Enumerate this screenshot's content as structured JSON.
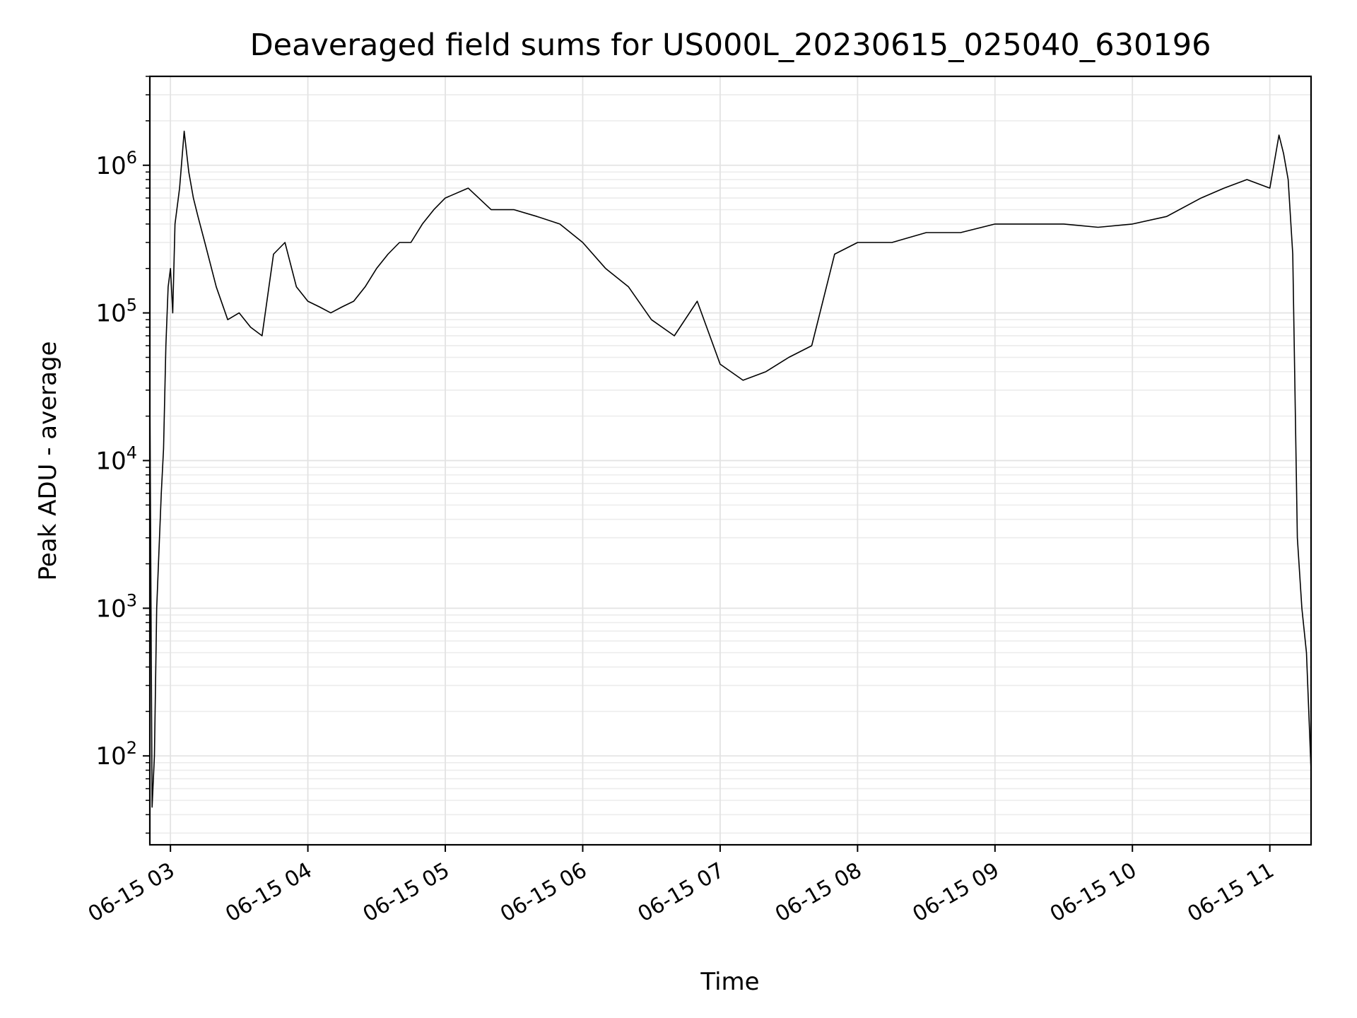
{
  "chart_data": {
    "type": "line",
    "title": "Deaveraged field sums for US000L_20230615_025040_630196",
    "xlabel": "Time",
    "ylabel": "Peak ADU - average",
    "yscale": "log",
    "grid": "major and minor",
    "xlim": [
      "2023-06-15 02:51",
      "2023-06-15 11:18"
    ],
    "ylim": [
      25,
      4000000
    ],
    "x_tick_labels": [
      "06-15 03",
      "06-15 04",
      "06-15 05",
      "06-15 06",
      "06-15 07",
      "06-15 08",
      "06-15 09",
      "06-15 10",
      "06-15 11"
    ],
    "y_ticks": [
      {
        "base": "10",
        "exp": "2",
        "value": 100
      },
      {
        "base": "10",
        "exp": "3",
        "value": 1000
      },
      {
        "base": "10",
        "exp": "4",
        "value": 10000
      },
      {
        "base": "10",
        "exp": "5",
        "value": 100000
      },
      {
        "base": "10",
        "exp": "6",
        "value": 1000000
      }
    ],
    "series": [
      {
        "color": "#000000",
        "x": [
          "02:51",
          "02:52",
          "02:53",
          "02:54",
          "02:55",
          "02:56",
          "02:57",
          "02:58",
          "02:59",
          "03:00",
          "03:01",
          "03:02",
          "03:04",
          "03:06",
          "03:08",
          "03:10",
          "03:12",
          "03:15",
          "03:20",
          "03:25",
          "03:30",
          "03:35",
          "03:40",
          "03:45",
          "03:50",
          "03:55",
          "04:00",
          "04:05",
          "04:10",
          "04:15",
          "04:20",
          "04:25",
          "04:30",
          "04:35",
          "04:40",
          "04:45",
          "04:50",
          "04:55",
          "05:00",
          "05:10",
          "05:20",
          "05:30",
          "05:40",
          "05:50",
          "06:00",
          "06:10",
          "06:20",
          "06:30",
          "06:40",
          "06:50",
          "07:00",
          "07:10",
          "07:20",
          "07:30",
          "07:40",
          "07:50",
          "08:00",
          "08:15",
          "08:30",
          "08:45",
          "09:00",
          "09:15",
          "09:30",
          "09:45",
          "10:00",
          "10:15",
          "10:30",
          "10:40",
          "10:50",
          "11:00",
          "11:04",
          "11:06",
          "11:08",
          "11:10",
          "11:12",
          "11:14",
          "11:16",
          "11:18"
        ],
        "y": [
          30000,
          45,
          100,
          1000,
          2500,
          6000,
          12000,
          60000,
          150000,
          200000,
          100000,
          400000,
          700000,
          1700000,
          900000,
          600000,
          450000,
          300000,
          150000,
          90000,
          100000,
          80000,
          70000,
          250000,
          300000,
          150000,
          120000,
          110000,
          100000,
          110000,
          120000,
          150000,
          200000,
          250000,
          300000,
          300000,
          400000,
          500000,
          600000,
          700000,
          500000,
          500000,
          450000,
          400000,
          300000,
          200000,
          150000,
          90000,
          70000,
          120000,
          45000,
          35000,
          40000,
          50000,
          60000,
          250000,
          300000,
          300000,
          350000,
          350000,
          400000,
          400000,
          400000,
          380000,
          400000,
          450000,
          600000,
          700000,
          800000,
          700000,
          1600000,
          1200000,
          800000,
          250000,
          3000,
          1000,
          500,
          80
        ]
      }
    ]
  }
}
